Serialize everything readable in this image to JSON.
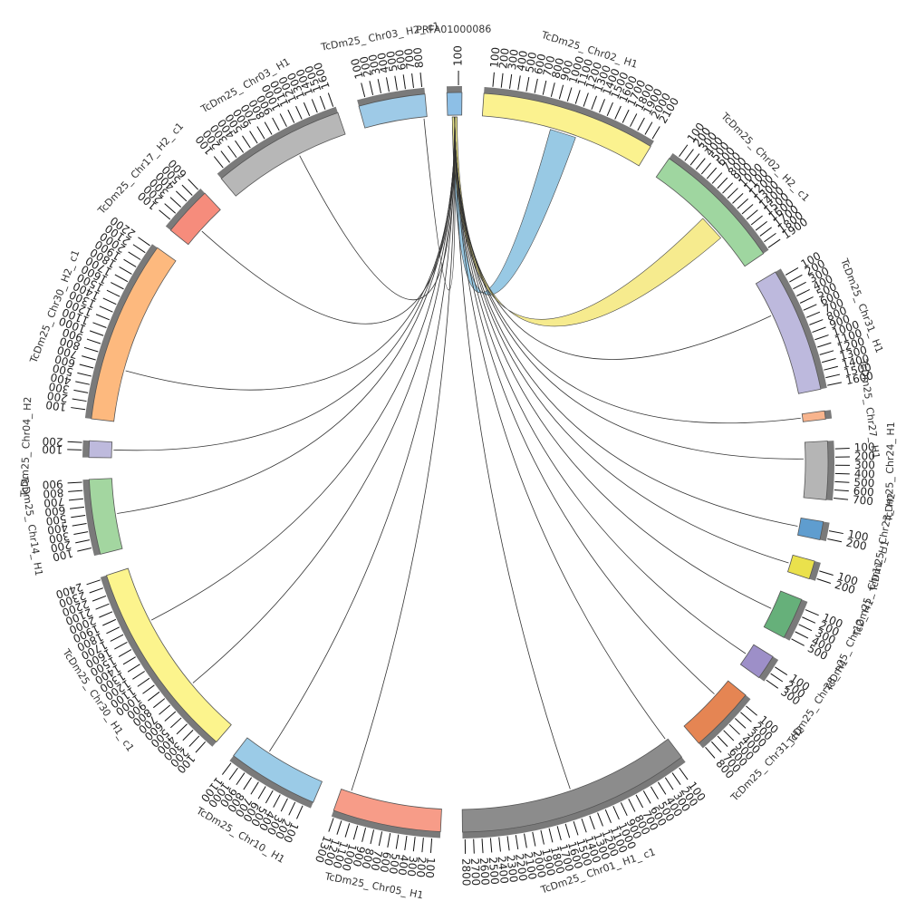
{
  "diagram": {
    "type": "circos",
    "segments": [
      {
        "id": "s0",
        "label": "PRFA01000086",
        "color": "#8DBFE6",
        "size": 1.8,
        "ticks": [
          "100"
        ]
      },
      {
        "id": "s1",
        "label": "TcDm25_ Chr02_ H1",
        "color": "#FBF28F",
        "size": 21,
        "ticks": [
          "100",
          "200",
          "300",
          "400",
          "500",
          "600",
          "700",
          "800",
          "900",
          "1000",
          "1100",
          "1200",
          "1300",
          "1400",
          "1500",
          "1600",
          "1700",
          "1800",
          "1900",
          "2000",
          "2100"
        ]
      },
      {
        "id": "s2",
        "label": "TcDm25_ Chr02_ H2_ c1",
        "color": "#9FD6A0",
        "size": 16,
        "ticks": [
          "100",
          "200",
          "300",
          "400",
          "500",
          "600",
          "700",
          "800",
          "900",
          "1000",
          "1100",
          "1200",
          "1300",
          "1400",
          "1500",
          "1600",
          "1700",
          "1800",
          "1900"
        ]
      },
      {
        "id": "s3",
        "label": "TcDm25_ Chr31_ H1",
        "color": "#BDB9DD",
        "size": 15,
        "ticks": [
          "100",
          "200",
          "300",
          "400",
          "500",
          "600",
          "700",
          "800",
          "900",
          "1000",
          "1100",
          "1200",
          "1300",
          "1400",
          "1500",
          "1600"
        ]
      },
      {
        "id": "s4",
        "label": "TcDm25_ Chr27_ H1",
        "color": "#F8B48D",
        "size": 1,
        "ticks": []
      },
      {
        "id": "s5",
        "label": "TcDm25_ Chr24_ H1",
        "color": "#B5B5B5",
        "size": 7,
        "ticks": [
          "100",
          "200",
          "300",
          "400",
          "500",
          "600",
          "700"
        ]
      },
      {
        "id": "s6",
        "label": "TcDm25_ Chr23_ H2",
        "color": "#5F9DCF",
        "size": 2.2,
        "ticks": [
          "100",
          "200"
        ]
      },
      {
        "id": "s7",
        "label": "TcDm25_ Chr11_ H1",
        "color": "#EAE14C",
        "size": 2.2,
        "ticks": [
          "100",
          "200"
        ]
      },
      {
        "id": "s8",
        "label": "TcDm25_ Chr12_ H1",
        "color": "#66B07A",
        "size": 5,
        "ticks": [
          "100",
          "200",
          "300",
          "400",
          "500"
        ]
      },
      {
        "id": "s9",
        "label": "TcDm25_ Chr28_ H1",
        "color": "#9D8FC8",
        "size": 3,
        "ticks": [
          "100",
          "200",
          "300"
        ]
      },
      {
        "id": "s10",
        "label": "TcDm25_ Chr31_ H2",
        "color": "#E58553",
        "size": 8,
        "ticks": [
          "100",
          "200",
          "300",
          "400",
          "500",
          "600",
          "700",
          "800"
        ]
      },
      {
        "id": "s11",
        "label": "TcDm25_ Chr01_ H1_ c1",
        "color": "#8C8C8C",
        "size": 28,
        "ticks": [
          "100",
          "200",
          "300",
          "400",
          "500",
          "600",
          "700",
          "800",
          "900",
          "1000",
          "1100",
          "1200",
          "1300",
          "1400",
          "1500",
          "1600",
          "1700",
          "1800",
          "1900",
          "2000",
          "2100",
          "2200",
          "2300",
          "2400",
          "2500",
          "2600",
          "2700",
          "2800"
        ]
      },
      {
        "id": "s12",
        "label": "TcDm25_ Chr05_ H1",
        "color": "#F79C88",
        "size": 13,
        "ticks": [
          "100",
          "200",
          "300",
          "400",
          "500",
          "600",
          "700",
          "800",
          "900",
          "1000",
          "1100",
          "1200",
          "1300"
        ]
      },
      {
        "id": "s13",
        "label": "TcDm25_ Chr10_ H1",
        "color": "#9BCBE7",
        "size": 11,
        "ticks": [
          "100",
          "200",
          "300",
          "400",
          "500",
          "600",
          "700",
          "800",
          "900",
          "1000",
          "1100"
        ]
      },
      {
        "id": "s14",
        "label": "TcDm25_ Chr30_ H1_ c1",
        "color": "#FCF48D",
        "size": 24,
        "ticks": [
          "100",
          "200",
          "300",
          "400",
          "500",
          "600",
          "700",
          "800",
          "900",
          "1000",
          "1100",
          "1200",
          "1300",
          "1400",
          "1500",
          "1600",
          "1700",
          "1800",
          "1900",
          "2000",
          "2100",
          "2200",
          "2300",
          "2400"
        ]
      },
      {
        "id": "s15",
        "label": "TcDm25_ Chr14_ H1",
        "color": "#A3D6A0",
        "size": 9,
        "ticks": [
          "100",
          "200",
          "300",
          "400",
          "500",
          "600",
          "700",
          "800",
          "900"
        ]
      },
      {
        "id": "s16",
        "label": "TcDm25_ Chr04_ H2",
        "color": "#BEBADD",
        "size": 2,
        "ticks": [
          "100",
          "200"
        ]
      },
      {
        "id": "s17",
        "label": "TcDm25_ Chr30_ H2_ c1",
        "color": "#FDB97E",
        "size": 22,
        "ticks": [
          "100",
          "200",
          "300",
          "400",
          "500",
          "600",
          "700",
          "800",
          "900",
          "1000",
          "1100",
          "1200",
          "1300",
          "1400",
          "1500",
          "1600",
          "1700",
          "1800",
          "1900",
          "2000",
          "2100",
          "2200"
        ]
      },
      {
        "id": "s18",
        "label": "TcDm25_ Chr17_ H2_ c1",
        "color": "#F68C7C",
        "size": 6,
        "ticks": [
          "100",
          "200",
          "300",
          "400",
          "500",
          "600"
        ]
      },
      {
        "id": "s19",
        "label": "TcDm25_ Chr03_ H1",
        "color": "#B7B7B7",
        "size": 16,
        "ticks": [
          "100",
          "200",
          "300",
          "400",
          "500",
          "600",
          "700",
          "800",
          "900",
          "1000",
          "1100",
          "1200",
          "1300",
          "1400",
          "1500",
          "1600"
        ]
      },
      {
        "id": "s20",
        "label": "TcDm25_ Chr03_ H2_ c1",
        "color": "#9ECAE7",
        "size": 8,
        "ticks": [
          "100",
          "200",
          "300",
          "400",
          "500",
          "600",
          "700",
          "800"
        ]
      }
    ],
    "links": [
      {
        "from": "s0",
        "to": "s1",
        "frac": 0.5,
        "color": "#86BFDF",
        "ribbon": true
      },
      {
        "from": "s0",
        "to": "s2",
        "frac": 0.6,
        "color": "#F4E77A",
        "ribbon": true
      },
      {
        "from": "s0",
        "to": "s3",
        "frac": 0.3,
        "color": "#333333",
        "ribbon": false
      },
      {
        "from": "s0",
        "to": "s4",
        "frac": 0.5,
        "color": "#333333",
        "ribbon": false
      },
      {
        "from": "s0",
        "to": "s5",
        "frac": 0.3,
        "color": "#333333",
        "ribbon": false
      },
      {
        "from": "s0",
        "to": "s6",
        "frac": 0.5,
        "color": "#333333",
        "ribbon": false
      },
      {
        "from": "s0",
        "to": "s7",
        "frac": 0.5,
        "color": "#333333",
        "ribbon": false
      },
      {
        "from": "s0",
        "to": "s8",
        "frac": 0.5,
        "color": "#333333",
        "ribbon": false
      },
      {
        "from": "s0",
        "to": "s9",
        "frac": 0.5,
        "color": "#333333",
        "ribbon": false
      },
      {
        "from": "s0",
        "to": "s10",
        "frac": 0.3,
        "color": "#333333",
        "ribbon": false
      },
      {
        "from": "s0",
        "to": "s11",
        "frac": 0.5,
        "color": "#333333",
        "ribbon": false
      },
      {
        "from": "s0",
        "to": "s11",
        "frac": 0.01,
        "color": "#333333",
        "ribbon": false
      },
      {
        "from": "s0",
        "to": "s12",
        "frac": 0.9,
        "color": "#333333",
        "ribbon": false
      },
      {
        "from": "s0",
        "to": "s13",
        "frac": 0.7,
        "color": "#333333",
        "ribbon": false
      },
      {
        "from": "s0",
        "to": "s14",
        "frac": 0.3,
        "color": "#333333",
        "ribbon": false
      },
      {
        "from": "s0",
        "to": "s14",
        "frac": 0.7,
        "color": "#333333",
        "ribbon": false
      },
      {
        "from": "s0",
        "to": "s15",
        "frac": 0.5,
        "color": "#333333",
        "ribbon": false
      },
      {
        "from": "s0",
        "to": "s16",
        "frac": 0.5,
        "color": "#333333",
        "ribbon": false
      },
      {
        "from": "s0",
        "to": "s17",
        "frac": 0.3,
        "color": "#333333",
        "ribbon": false
      },
      {
        "from": "s0",
        "to": "s18",
        "frac": 0.4,
        "color": "#333333",
        "ribbon": false
      },
      {
        "from": "s0",
        "to": "s19",
        "frac": 0.6,
        "color": "#333333",
        "ribbon": false
      },
      {
        "from": "s0",
        "to": "s20",
        "frac": 0.95,
        "color": "#333333",
        "ribbon": false
      }
    ]
  }
}
